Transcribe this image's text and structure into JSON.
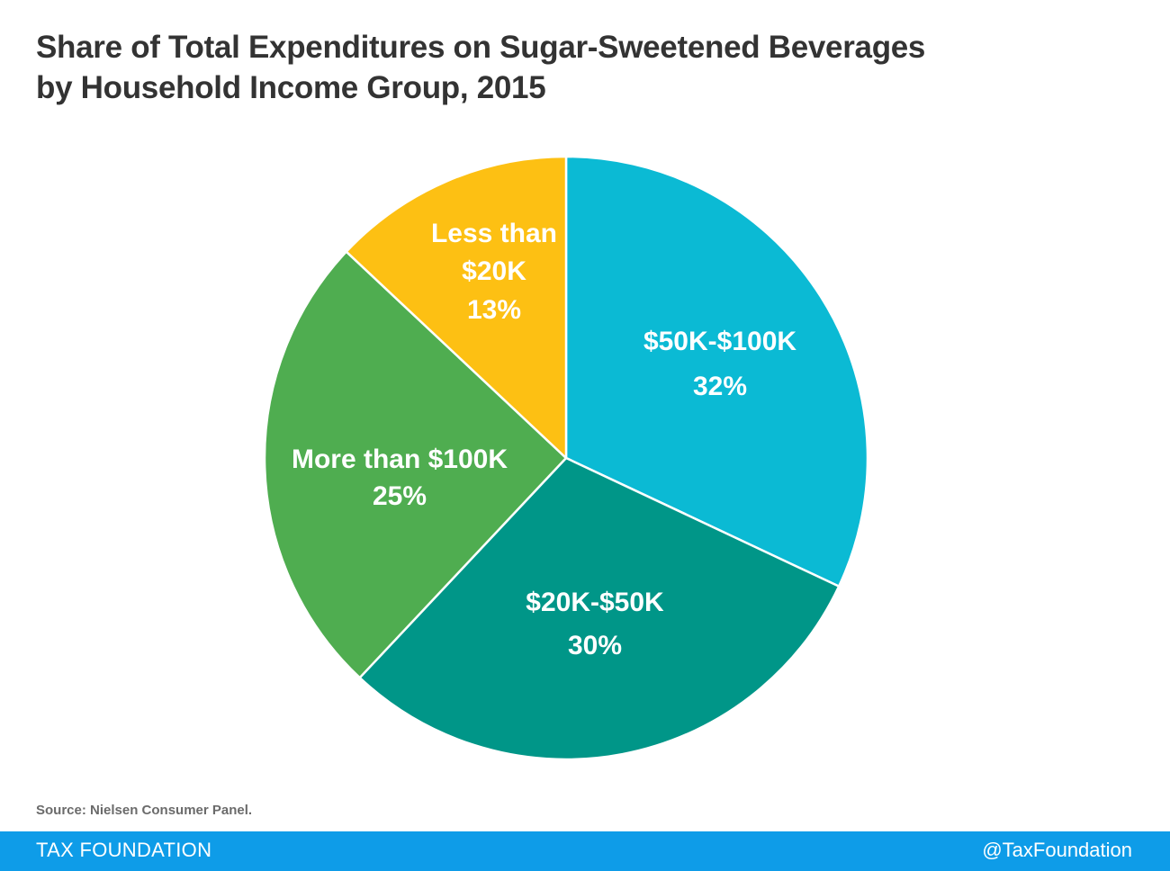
{
  "header": {
    "title_line1": "Share of Total Expenditures on Sugar-Sweetened Beverages",
    "title_line2": "by Household Income Group, 2015"
  },
  "chart_data": {
    "type": "pie",
    "title": "Share of Total Expenditures on Sugar-Sweetened Beverages by Household Income Group, 2015",
    "slices": [
      {
        "label": "$50K-$100K",
        "value": 32,
        "value_label": "32%",
        "color": "#0bbad4"
      },
      {
        "label": "$20K-$50K",
        "value": 30,
        "value_label": "30%",
        "color": "#009688"
      },
      {
        "label": "More than $100K",
        "value": 25,
        "value_label": "25%",
        "color": "#4fad50"
      },
      {
        "label": "Less than $20K",
        "value": 13,
        "value_label": "13%",
        "color": "#fdc013"
      }
    ],
    "start": "12 o'clock",
    "direction": "clockwise",
    "legend": "none"
  },
  "source": "Source: Nielsen Consumer Panel.",
  "footer": {
    "brand": "TAX FOUNDATION",
    "handle": "@TaxFoundation",
    "color": "#0e9ce8"
  }
}
